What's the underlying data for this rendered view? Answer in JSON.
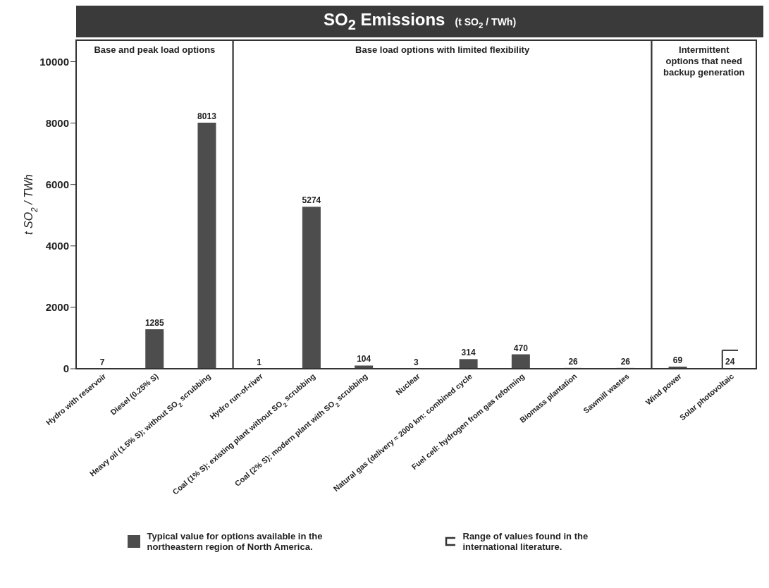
{
  "chart_data": {
    "type": "bar",
    "title": "SO$_{2}$ Emissions",
    "subtitle": "(t SO$_{2}$ / TWh)",
    "ylabel": "t SO$_{2}$ / TWh",
    "categories": [
      "Hydro with reservoir",
      "Diesel (0.25% S)",
      "Heavy oil (1.5% S); without SO$_{2}$ scrubbing",
      "Hydro run-of-river",
      "Coal (1% S); existing plant without SO$_{2}$ scrubbing",
      "Coal (2% S); modern plant with SO$_{2}$ scrubbing",
      "Nuclear",
      "Natural gas (delivery ≈ 2000 km: combined cycle",
      "Fuel cell: hydrogen from gas reforming",
      "Biomass plantation",
      "Sawmill wastes",
      "Wind power",
      "Solar photovoltaic"
    ],
    "series": [
      {
        "name": "Typical value for options available in the northeastern region of North America.",
        "color": "#4d4d4d",
        "values": [
          7,
          1285,
          8013,
          1,
          5274,
          104,
          3,
          314,
          470,
          26,
          26,
          69,
          24
        ],
        "errors": [
          null,
          null,
          null,
          null,
          null,
          null,
          null,
          null,
          null,
          null,
          null,
          null,
          [
            0,
            600
          ]
        ]
      }
    ],
    "data_labels": true,
    "ylim": [
      0,
      10700
    ],
    "yticks": [
      0,
      2000,
      4000,
      6000,
      8000,
      10000
    ],
    "bands": [
      {
        "axis": "x",
        "from": "Hydro with reservoir",
        "to": "Heavy oil (1.5% S); without SO$_{2}$ scrubbing",
        "label": "Base and peak load options"
      },
      {
        "axis": "x",
        "from": "Hydro run-of-river",
        "to": "Sawmill wastes",
        "label": "Base load options with limited flexibility"
      },
      {
        "axis": "x",
        "from": "Wind power",
        "to": "Solar photovoltaic",
        "label": "Intermittent options that need backup generation"
      }
    ],
    "annotations": [
      "Range of values found in the international literature."
    ],
    "legend": "bottom"
  }
}
